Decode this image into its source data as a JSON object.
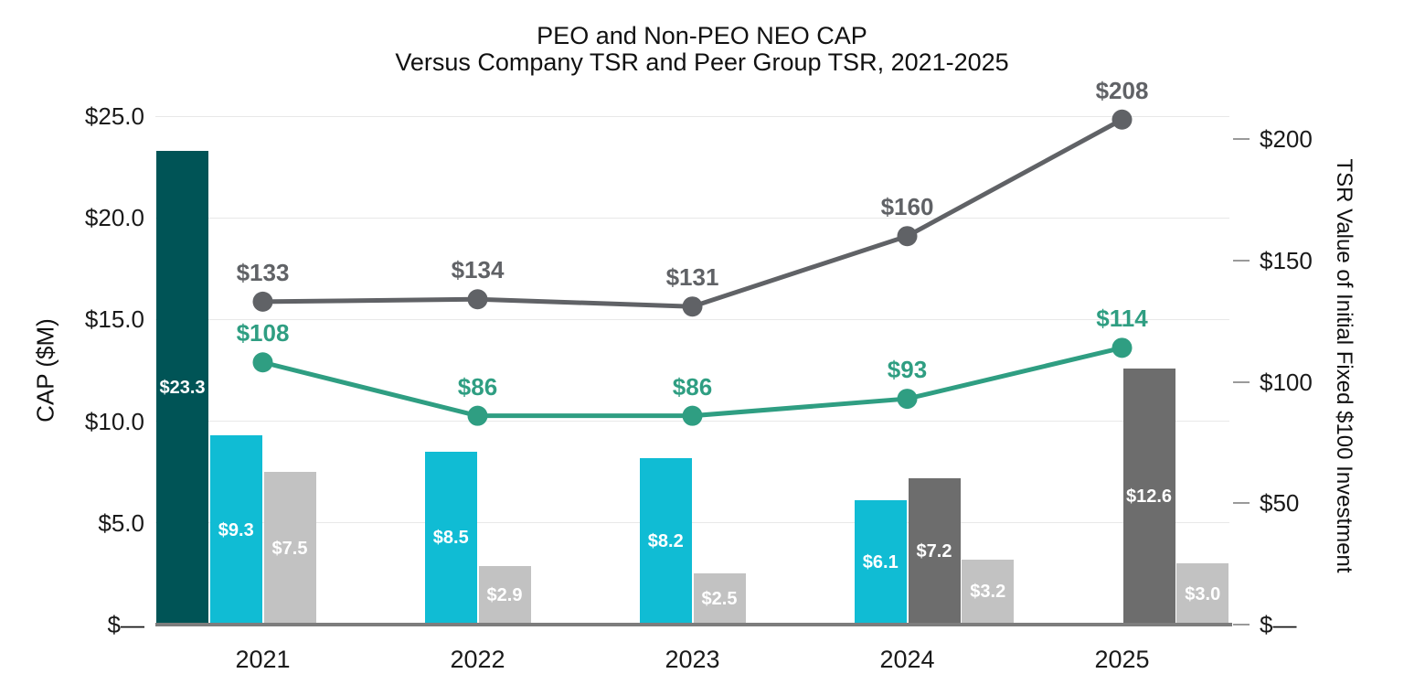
{
  "title": {
    "line1": "PEO and Non-PEO NEO CAP",
    "line2": "Versus Company TSR and Peer Group TSR, 2021-2025"
  },
  "left_axis": {
    "title": "CAP ($M)",
    "min": 0,
    "max": 25,
    "ticks": [
      {
        "value": 25,
        "label": "$25.0"
      },
      {
        "value": 20,
        "label": "$20.0"
      },
      {
        "value": 15,
        "label": "$15.0"
      },
      {
        "value": 10,
        "label": "$10.0"
      },
      {
        "value": 5,
        "label": "$5.0"
      },
      {
        "value": 0,
        "label": "$—"
      }
    ]
  },
  "right_axis": {
    "title": "TSR Value of Initial Fixed $100 Investment",
    "min": 0,
    "max": 200,
    "ticks": [
      {
        "value": 200,
        "label": "$200"
      },
      {
        "value": 150,
        "label": "$150"
      },
      {
        "value": 100,
        "label": "$100"
      },
      {
        "value": 50,
        "label": "$50"
      },
      {
        "value": 0,
        "label": "$—"
      }
    ]
  },
  "colors": {
    "darkTeal": "#005456",
    "cyan": "#10bcd4",
    "lightGray": "#c2c2c2",
    "darkGray": "#6d6d6d",
    "grayLine": "#606266",
    "tealLine": "#2f9e82",
    "gridline": "#e8e8e8",
    "axis": "#7d7d7d",
    "tickDash": "#9a9a9a",
    "barLabel": "#ffffff"
  },
  "chart_data": {
    "type": "bar+line combo (bars on left CAP $M axis, lines on right TSR axis)",
    "categories": [
      "2021",
      "2022",
      "2023",
      "2024",
      "2025"
    ],
    "grid": "horizontal gridlines at $5.0 CAP intervals",
    "legend": "none shown",
    "groups": [
      {
        "year": "2021",
        "bars": [
          {
            "series": "dark-teal-cap",
            "slot": 0,
            "value": 23.3,
            "label": "$23.3",
            "color": "darkTeal"
          },
          {
            "series": "cyan-cap",
            "slot": 1,
            "value": 9.3,
            "label": "$9.3",
            "color": "cyan"
          },
          {
            "series": "light-gray-cap",
            "slot": 2,
            "value": 7.5,
            "label": "$7.5",
            "color": "lightGray"
          }
        ]
      },
      {
        "year": "2022",
        "bars": [
          {
            "series": "cyan-cap",
            "slot": 1,
            "value": 8.5,
            "label": "$8.5",
            "color": "cyan"
          },
          {
            "series": "light-gray-cap",
            "slot": 2,
            "value": 2.9,
            "label": "$2.9",
            "color": "lightGray"
          }
        ]
      },
      {
        "year": "2023",
        "bars": [
          {
            "series": "cyan-cap",
            "slot": 1,
            "value": 8.2,
            "label": "$8.2",
            "color": "cyan"
          },
          {
            "series": "light-gray-cap",
            "slot": 2,
            "value": 2.5,
            "label": "$2.5",
            "color": "lightGray"
          }
        ]
      },
      {
        "year": "2024",
        "bars": [
          {
            "series": "cyan-cap",
            "slot": 1,
            "value": 6.1,
            "label": "$6.1",
            "color": "cyan"
          },
          {
            "series": "dark-gray-cap",
            "slot": 2,
            "value": 7.2,
            "label": "$7.2",
            "color": "darkGray"
          },
          {
            "series": "light-gray-cap",
            "slot": 3,
            "value": 3.2,
            "label": "$3.2",
            "color": "lightGray"
          }
        ]
      },
      {
        "year": "2025",
        "bars": [
          {
            "series": "dark-gray-cap",
            "slot": 2,
            "value": 12.6,
            "label": "$12.6",
            "color": "darkGray"
          },
          {
            "series": "light-gray-cap",
            "slot": 3,
            "value": 3.0,
            "label": "$3.0",
            "color": "lightGray"
          }
        ]
      }
    ],
    "line_series": [
      {
        "name": "gray-tsr-line",
        "color": "grayLine",
        "values": [
          133,
          134,
          131,
          160,
          208
        ],
        "labels": [
          "$133",
          "$134",
          "$131",
          "$160",
          "$208"
        ]
      },
      {
        "name": "teal-tsr-line",
        "color": "tealLine",
        "values": [
          108,
          86,
          86,
          93,
          114
        ],
        "labels": [
          "$108",
          "$86",
          "$86",
          "$93",
          "$114"
        ]
      }
    ]
  }
}
